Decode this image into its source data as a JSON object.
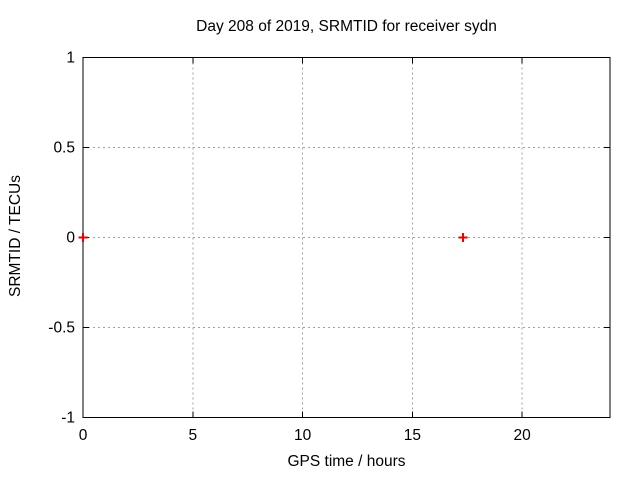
{
  "chart_data": {
    "type": "scatter",
    "title": "Day 208 of 2019, SRMTID for receiver sydn",
    "xlabel": "GPS time / hours",
    "ylabel": "SRMTID / TECUs",
    "xlim": [
      0,
      24
    ],
    "ylim": [
      -1,
      1
    ],
    "xticks": {
      "values": [
        0,
        5,
        10,
        15,
        20
      ],
      "labels": [
        "0",
        "5",
        "10",
        "15",
        "20"
      ]
    },
    "yticks": {
      "values": [
        -1,
        -0.5,
        0,
        0.5,
        1
      ],
      "labels": [
        "-1",
        "-0.5",
        "0",
        "0.5",
        "1"
      ]
    },
    "grid": true,
    "grid_style": "dotted",
    "legend": "none",
    "series": [
      {
        "name": "SRMTID",
        "marker": "plus",
        "color": "#ee0000",
        "points": [
          [
            0,
            0
          ],
          [
            17.3,
            0
          ]
        ]
      }
    ],
    "colors": {
      "background": "#ffffff",
      "text": "#000000",
      "border": "#000000",
      "grid": "#a0a0a0",
      "marker": "#ee0000"
    }
  }
}
